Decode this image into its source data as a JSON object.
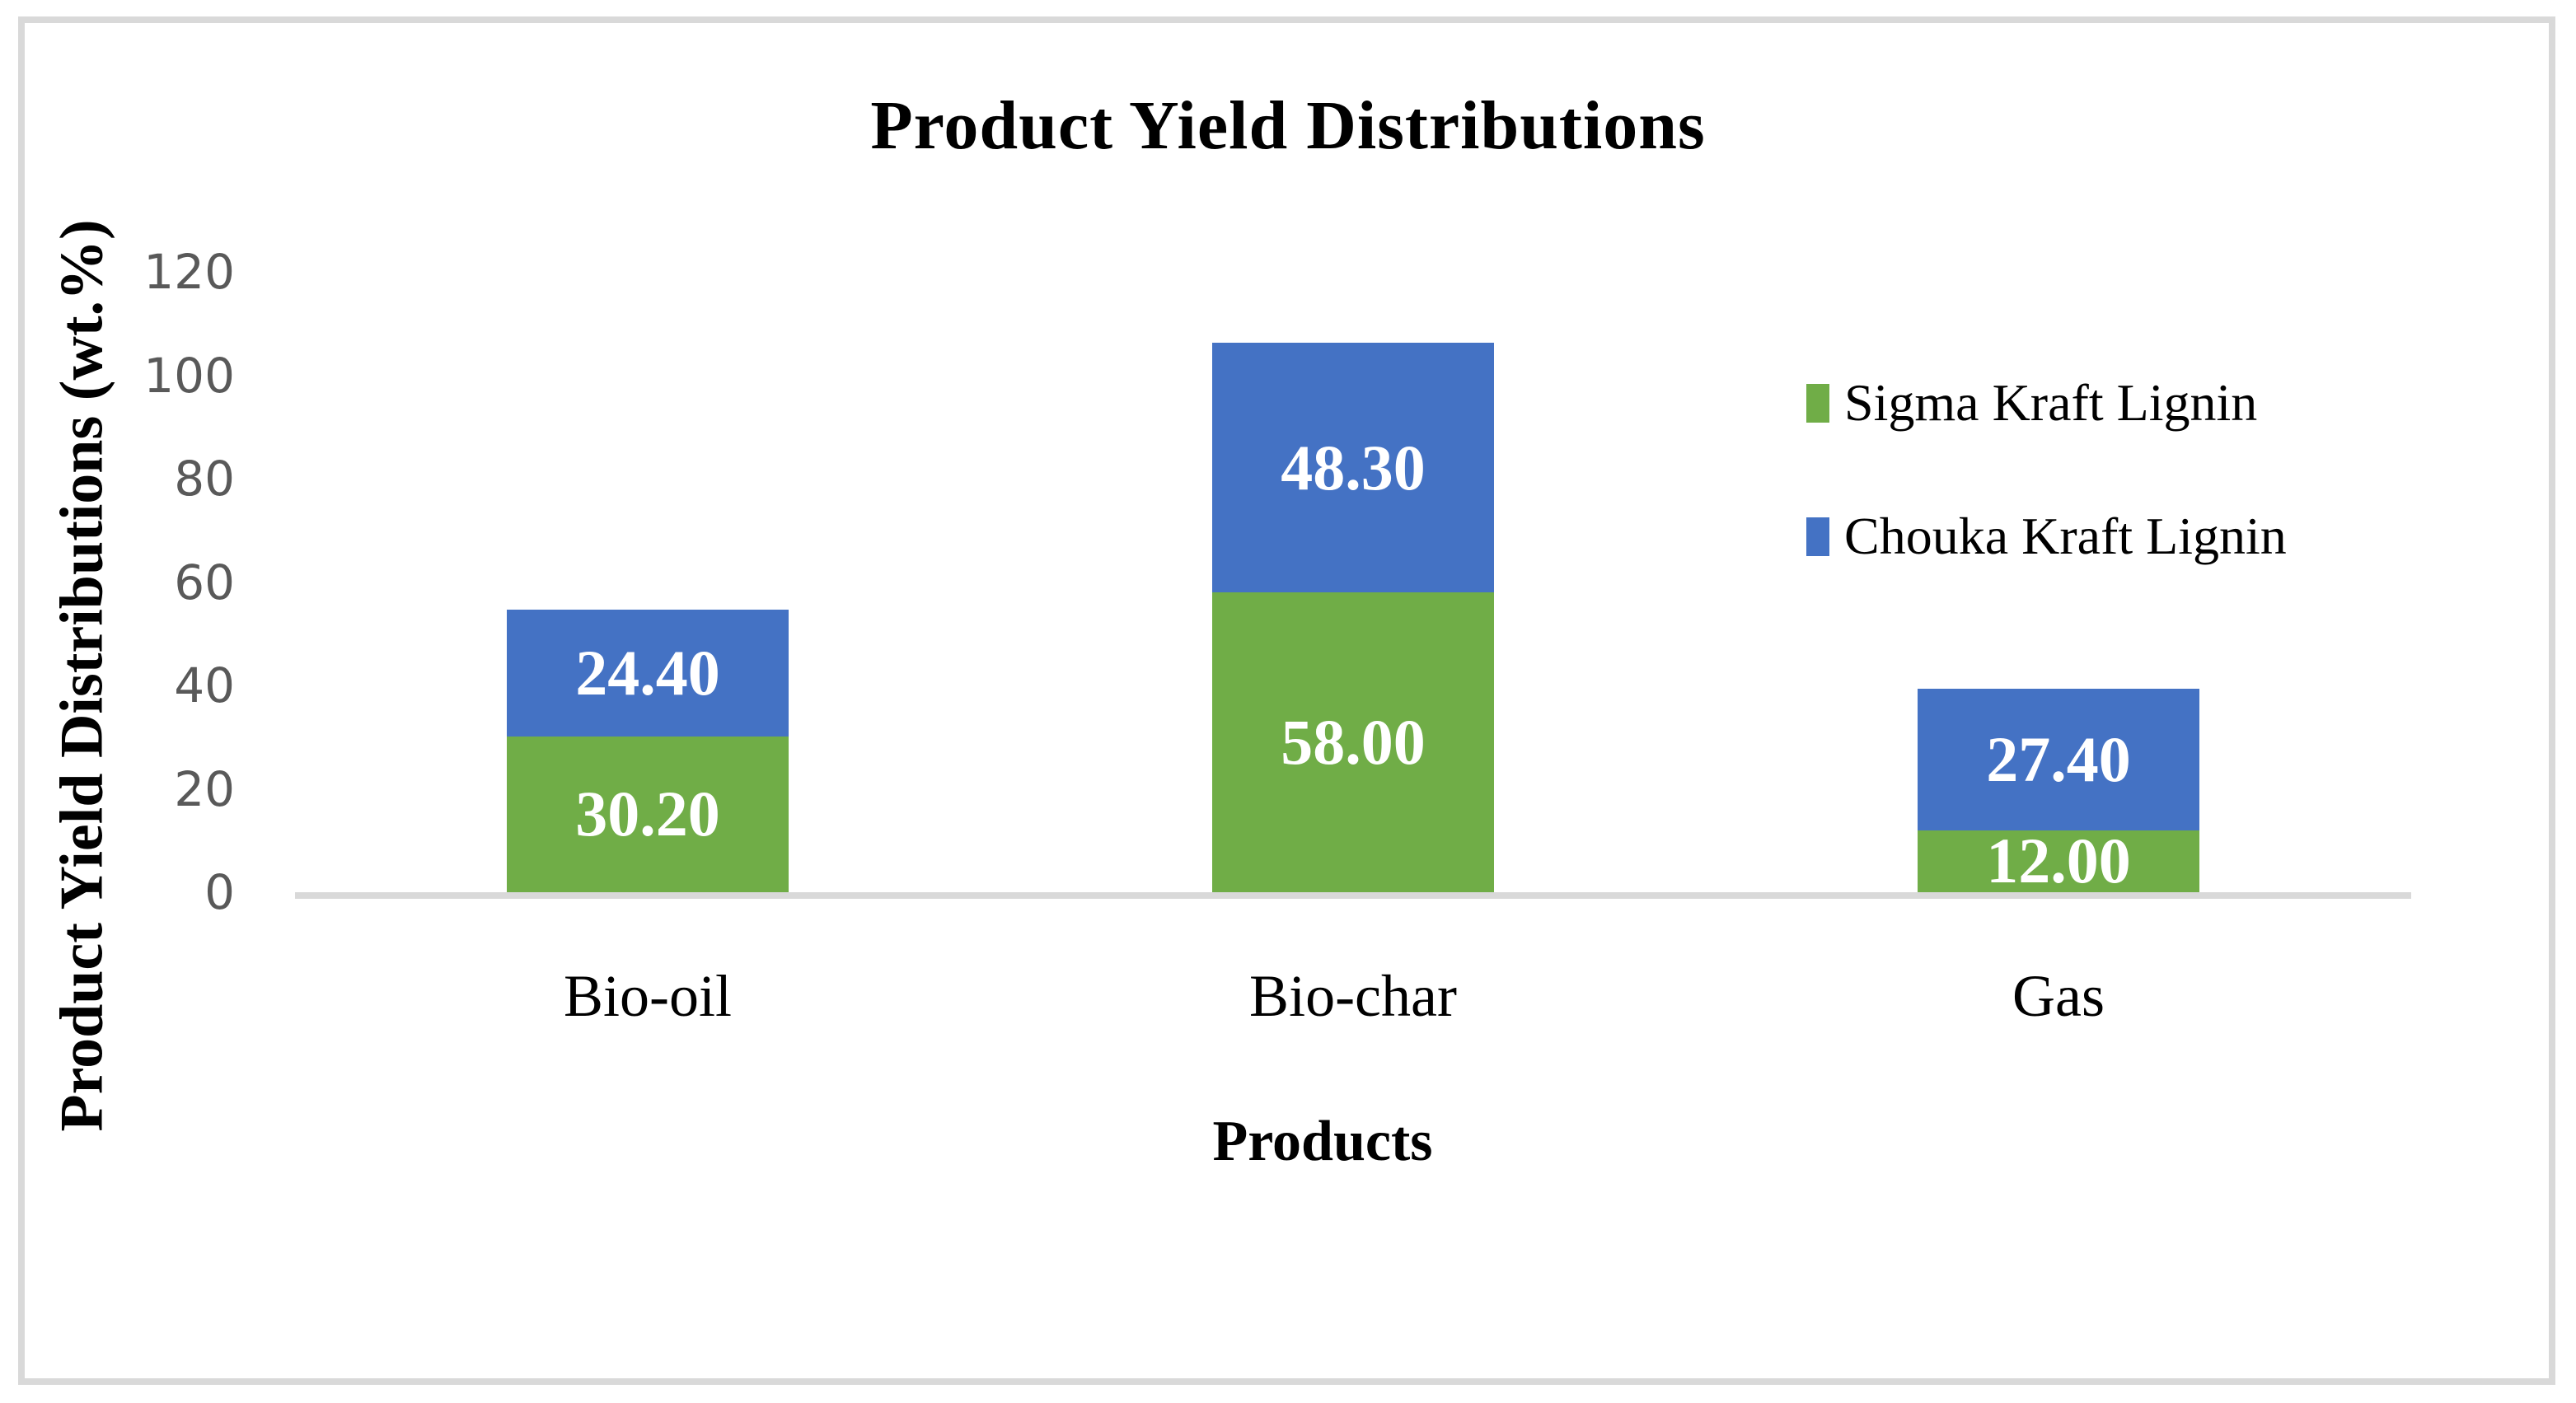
{
  "title": "Product Yield Distributions",
  "axes": {
    "y_title": "Product Yield Distributions (wt.%)",
    "x_title": "Products"
  },
  "legend": {
    "position": "right",
    "entries": [
      {
        "label": "Sigma Kraft Lignin",
        "color": "#70AD47"
      },
      {
        "label": "Chouka Kraft Lignin",
        "color": "#4472C4"
      }
    ]
  },
  "colors": {
    "sigma_green": "#70AD47",
    "chouka_blue": "#4472C4",
    "axis_gray": "#D9D9D9",
    "tick_gray": "#595959",
    "data_label_white": "#FFFFFF",
    "text_black": "#000000"
  },
  "chart_data": {
    "type": "bar",
    "stacked": true,
    "title": "Product Yield Distributions",
    "xlabel": "Products",
    "ylabel": "Product Yield Distributions (wt.%)",
    "categories": [
      "Bio-oil",
      "Bio-char",
      "Gas"
    ],
    "series": [
      {
        "name": "Sigma Kraft Lignin",
        "color": "#70AD47",
        "values": [
          30.2,
          58.0,
          12.0
        ],
        "labels": [
          "30.20",
          "58.00",
          "12.00"
        ]
      },
      {
        "name": "Chouka Kraft Lignin",
        "color": "#4472C4",
        "values": [
          24.4,
          48.3,
          27.4
        ],
        "labels": [
          "24.40",
          "48.30",
          "27.40"
        ]
      }
    ],
    "totals": [
      54.6,
      106.3,
      39.4
    ],
    "ylim": [
      0,
      120
    ],
    "yticks": [
      0,
      20,
      40,
      60,
      80,
      100,
      120
    ],
    "ytick_labels": [
      "0",
      "20",
      "40",
      "60",
      "80",
      "100",
      "120"
    ],
    "grid": false,
    "legend_position": "right",
    "data_label_position": "center"
  }
}
